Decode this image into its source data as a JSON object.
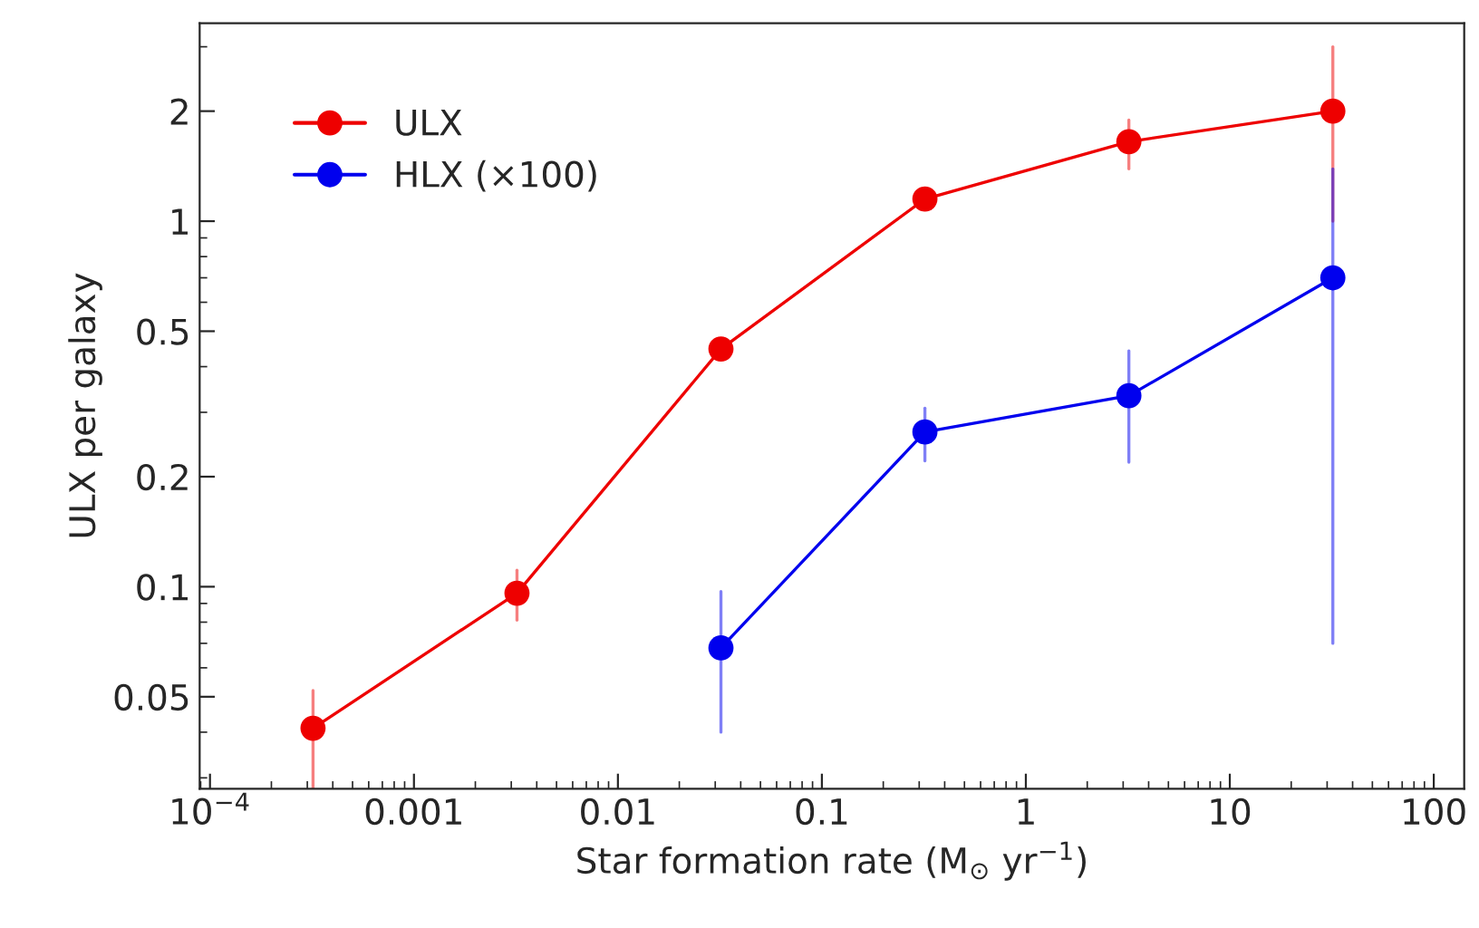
{
  "chart_data": {
    "type": "line",
    "xlabel": "Star formation rate (M$_{⊙}$ yr$^{−1}$)",
    "ylabel": "ULX per galaxy",
    "x": [
      0.00032,
      0.0032,
      0.032,
      0.32,
      3.2,
      32
    ],
    "series": [
      {
        "name": "ULX",
        "color": "#ee0000",
        "values": [
          0.041,
          0.096,
          0.447,
          1.15,
          1.65,
          2.0
        ],
        "errors": [
          [
            0.028,
            0.052
          ],
          [
            0.081,
            0.111
          ],
          null,
          null,
          [
            1.39,
            1.89
          ],
          [
            1.0,
            3.0
          ]
        ]
      },
      {
        "name": "HLX (×100)",
        "color": "#0000ee",
        "values": [
          null,
          null,
          0.068,
          0.265,
          0.333,
          0.7
        ],
        "errors": [
          null,
          null,
          [
            0.04,
            0.097
          ],
          [
            0.221,
            0.308
          ],
          [
            0.219,
            0.442
          ],
          [
            0.07,
            1.39
          ]
        ]
      }
    ],
    "log": "xy",
    "xlim": [
      8.9e-05,
      141
    ],
    "ylim": [
      0.028,
      3.48
    ],
    "xticks": [
      {
        "value": 0.0001,
        "label": "10$^{−4}$"
      },
      0.001,
      0.01,
      0.1,
      1,
      10,
      100
    ],
    "yticks": [
      0.05,
      0.1,
      0.2,
      0.5,
      1,
      2
    ],
    "marker": "circle",
    "line_style": "solid",
    "grid": false,
    "legend": "top left"
  }
}
